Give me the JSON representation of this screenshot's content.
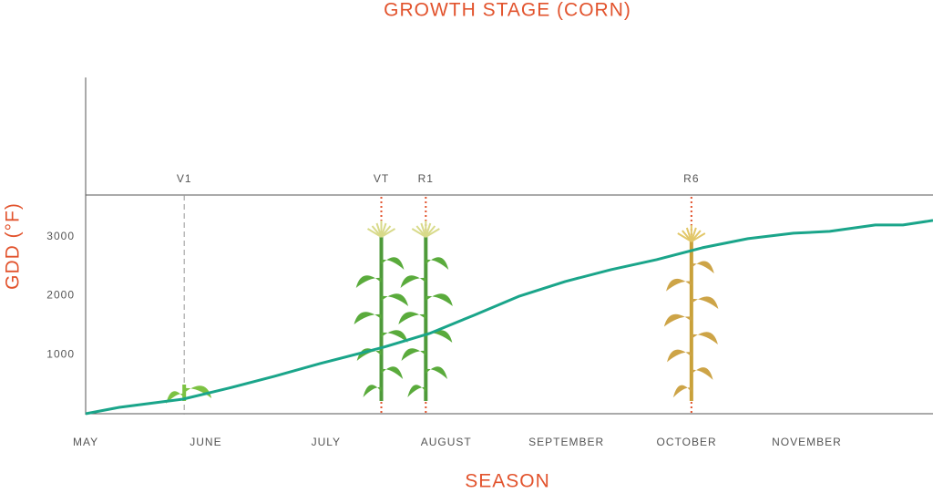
{
  "chart_data": {
    "type": "line",
    "title": "GROWTH STAGE (CORN)",
    "ylabel": "GDD (°F)",
    "xlabel": "SEASON",
    "categories": [
      "MAY",
      "JUNE",
      "JULY",
      "AUGUST",
      "SEPTEMBER",
      "OCTOBER",
      "NOVEMBER"
    ],
    "xlim": [
      0,
      7.05
    ],
    "ylim": [
      0,
      5700
    ],
    "yticks": [
      1000,
      2000,
      3000
    ],
    "color": "#1aa58a",
    "x": [
      0,
      0.28,
      0.81,
      1.19,
      1.57,
      1.95,
      2.48,
      2.86,
      3.23,
      3.61,
      3.99,
      4.37,
      4.75,
      5.13,
      5.51,
      5.89,
      6.19,
      6.57,
      6.8,
      7.05
    ],
    "values": [
      0,
      108,
      247,
      433,
      634,
      850,
      1128,
      1360,
      1669,
      1994,
      2241,
      2442,
      2612,
      2813,
      2968,
      3060,
      3091,
      3199,
      3199,
      3277
    ],
    "stages": [
      {
        "name": "V1",
        "x": 0.82
      },
      {
        "name": "VT",
        "x": 2.46
      },
      {
        "name": "R1",
        "x": 2.83
      },
      {
        "name": "R6",
        "x": 5.04
      }
    ]
  }
}
